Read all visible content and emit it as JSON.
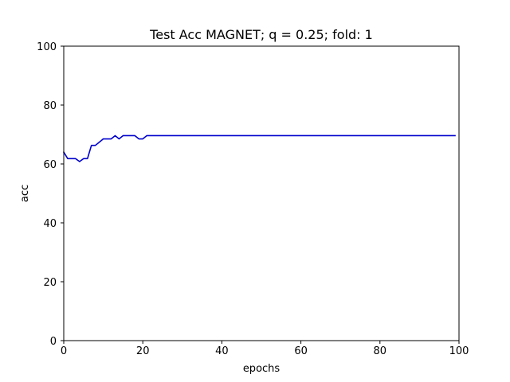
{
  "chart_data": {
    "type": "line",
    "title": "Test Acc MAGNET; q = 0.25; fold: 1",
    "xlabel": "epochs",
    "ylabel": "acc",
    "xlim": [
      0,
      100
    ],
    "ylim": [
      0,
      100
    ],
    "xticks": [
      "0",
      "20",
      "40",
      "60",
      "80",
      "100"
    ],
    "yticks": [
      "0",
      "20",
      "40",
      "60",
      "80",
      "100"
    ],
    "grid": false,
    "series": [
      {
        "color": "#0000cc",
        "x": [
          0,
          1,
          2,
          3,
          4,
          5,
          6,
          7,
          8,
          9,
          10,
          11,
          12,
          13,
          14,
          15,
          16,
          17,
          18,
          19,
          20,
          21,
          22,
          23,
          24,
          25,
          26,
          27,
          28,
          29,
          30,
          31,
          32,
          33,
          34,
          35,
          36,
          37,
          38,
          39,
          40,
          41,
          42,
          43,
          44,
          45,
          46,
          47,
          48,
          49,
          50,
          51,
          52,
          53,
          54,
          55,
          56,
          57,
          58,
          59,
          60,
          61,
          62,
          63,
          64,
          65,
          66,
          67,
          68,
          69,
          70,
          71,
          72,
          73,
          74,
          75,
          76,
          77,
          78,
          79,
          80,
          81,
          82,
          83,
          84,
          85,
          86,
          87,
          88,
          89,
          90,
          91,
          92,
          93,
          94,
          95,
          96,
          97,
          98,
          99
        ],
        "y": [
          64.0,
          61.8,
          61.8,
          61.8,
          60.8,
          61.8,
          61.8,
          66.3,
          66.3,
          67.4,
          68.5,
          68.5,
          68.5,
          69.6,
          68.5,
          69.6,
          69.6,
          69.6,
          69.6,
          68.5,
          68.5,
          69.6,
          69.6,
          69.6,
          69.6,
          69.6,
          69.6,
          69.6,
          69.6,
          69.6,
          69.6,
          69.6,
          69.6,
          69.6,
          69.6,
          69.6,
          69.6,
          69.6,
          69.6,
          69.6,
          69.6,
          69.6,
          69.6,
          69.6,
          69.6,
          69.6,
          69.6,
          69.6,
          69.6,
          69.6,
          69.6,
          69.6,
          69.6,
          69.6,
          69.6,
          69.6,
          69.6,
          69.6,
          69.6,
          69.6,
          69.6,
          69.6,
          69.6,
          69.6,
          69.6,
          69.6,
          69.6,
          69.6,
          69.6,
          69.6,
          69.6,
          69.6,
          69.6,
          69.6,
          69.6,
          69.6,
          69.6,
          69.6,
          69.6,
          69.6,
          69.6,
          69.6,
          69.6,
          69.6,
          69.6,
          69.6,
          69.6,
          69.6,
          69.6,
          69.6,
          69.6,
          69.6,
          69.6,
          69.6,
          69.6,
          69.6,
          69.6,
          69.6,
          69.6,
          69.6
        ]
      }
    ]
  }
}
